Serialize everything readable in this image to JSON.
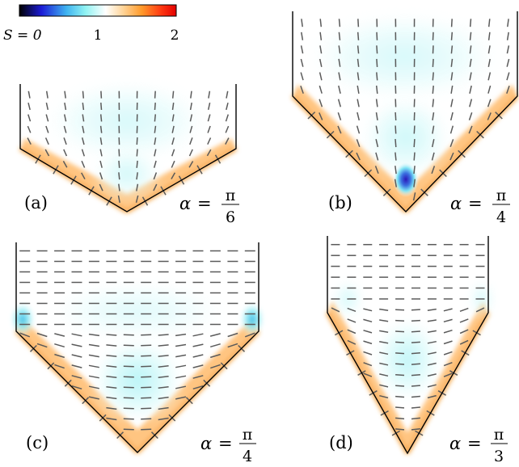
{
  "colorbar": {
    "label_min": "S = 0",
    "label_mid": "1",
    "label_max": "2",
    "min_value": 0,
    "mid_value": 1,
    "max_value": 2,
    "stops": [
      "#000000",
      "#1b1bd6",
      "#3fb3f0",
      "#8ff2f2",
      "#ffffff",
      "#ffd59a",
      "#ff9a2a",
      "#ff3b12",
      "#e40000"
    ]
  },
  "panels": [
    {
      "id": "a",
      "label": "(a)",
      "alpha_symbol": "α",
      "alpha_numerator": "π",
      "alpha_denominator": "6"
    },
    {
      "id": "b",
      "label": "(b)",
      "alpha_symbol": "α",
      "alpha_numerator": "π",
      "alpha_denominator": "4"
    },
    {
      "id": "c",
      "label": "(c)",
      "alpha_symbol": "α",
      "alpha_numerator": "π",
      "alpha_denominator": "4"
    },
    {
      "id": "d",
      "label": "(d)",
      "alpha_symbol": "α",
      "alpha_numerator": "π",
      "alpha_denominator": "3"
    }
  ],
  "colors": {
    "wall": "#000000",
    "director": "#5a5a5a",
    "high_order_edge": "#f39a2a",
    "low_order": "#8ff2f2",
    "defect_core": "#1b1bd6"
  }
}
